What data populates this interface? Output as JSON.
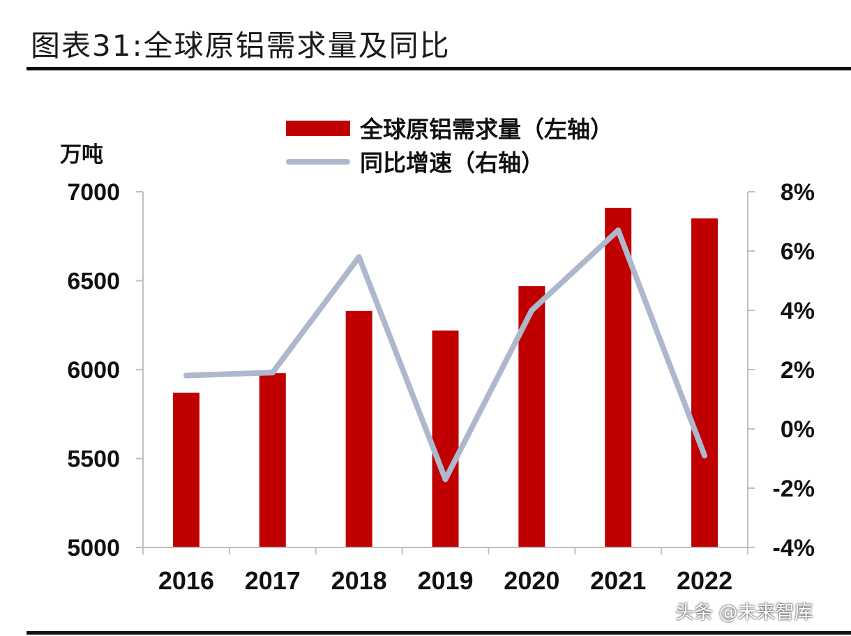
{
  "figure_title": "图表31:全球原铝需求量及同比",
  "watermark": "头条 @未来智库",
  "colors": {
    "bar": "#C00000",
    "line": "#AEB8CC",
    "axis": "#BFBFBF",
    "text": "#111111"
  },
  "chart_data": {
    "type": "bar",
    "categories": [
      "2016",
      "2017",
      "2018",
      "2019",
      "2020",
      "2021",
      "2022"
    ],
    "series": [
      {
        "name": "全球原铝需求量（左轴）",
        "type": "bar",
        "axis": "left",
        "values": [
          5870,
          5980,
          6330,
          6220,
          6470,
          6910,
          6850
        ]
      },
      {
        "name": "同比增速（右轴）",
        "type": "line",
        "axis": "right",
        "values": [
          1.8,
          1.9,
          5.8,
          -1.7,
          4.0,
          6.7,
          -0.9
        ]
      }
    ],
    "y_left": {
      "label": "万吨",
      "range": [
        5000,
        7000
      ],
      "ticks": [
        5000,
        5500,
        6000,
        6500,
        7000
      ],
      "tick_labels": [
        "5000",
        "5500",
        "6000",
        "6500",
        "7000"
      ]
    },
    "y_right": {
      "range": [
        -4,
        8
      ],
      "ticks": [
        -4,
        -2,
        0,
        2,
        4,
        6,
        8
      ],
      "tick_labels": [
        "-4%",
        "-2%",
        "0%",
        "2%",
        "4%",
        "6%",
        "8%"
      ]
    },
    "legend": {
      "placement": "top-center"
    },
    "grid": false
  }
}
